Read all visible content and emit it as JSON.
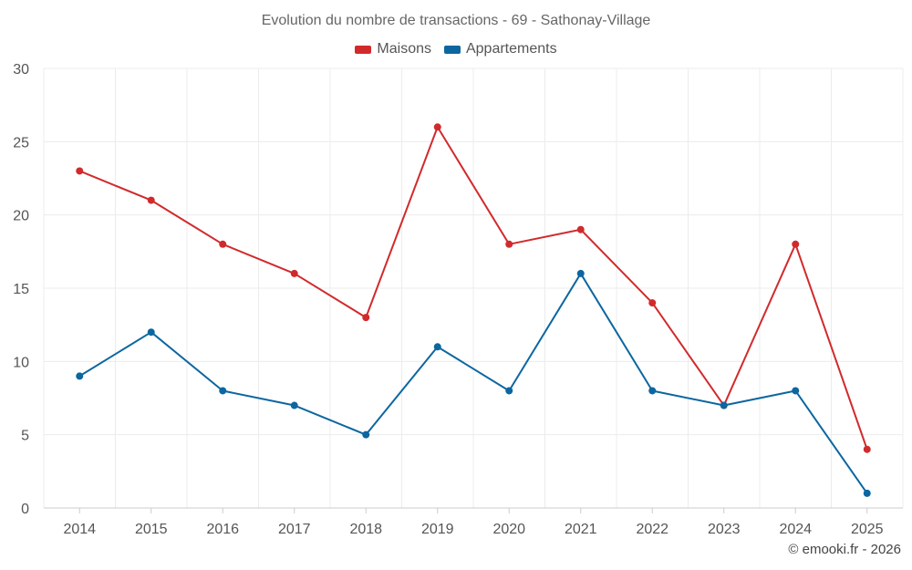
{
  "chart_data": {
    "type": "line",
    "title": "Evolution du nombre de transactions - 69 - Sathonay-Village",
    "xlabel": "",
    "ylabel": "",
    "categories": [
      "2014",
      "2015",
      "2016",
      "2017",
      "2018",
      "2019",
      "2020",
      "2021",
      "2022",
      "2023",
      "2024",
      "2025"
    ],
    "ylim": [
      0,
      30
    ],
    "yticks": [
      "0",
      "5",
      "10",
      "15",
      "20",
      "25",
      "30"
    ],
    "grid": true,
    "legend_position": "top-center",
    "series": [
      {
        "name": "Maisons",
        "color": "#d12a2c",
        "values": [
          23,
          21,
          18,
          16,
          13,
          26,
          18,
          19,
          14,
          7,
          18,
          4
        ]
      },
      {
        "name": "Appartements",
        "color": "#0c66a0",
        "values": [
          9,
          12,
          8,
          7,
          5,
          11,
          8,
          16,
          8,
          7,
          8,
          1
        ]
      }
    ]
  },
  "credit": "© emooki.fr - 2026"
}
